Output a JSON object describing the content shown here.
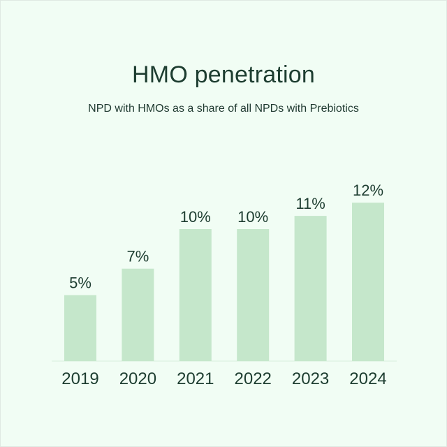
{
  "chart_data": {
    "type": "bar",
    "title": "HMO penetration",
    "subtitle": "NPD with HMOs as a share of all NPDs with Prebiotics",
    "categories": [
      "2019",
      "2020",
      "2021",
      "2022",
      "2023",
      "2024"
    ],
    "values": [
      5,
      7,
      10,
      10,
      11,
      12
    ],
    "value_labels": [
      "5%",
      "7%",
      "10%",
      "10%",
      "11%",
      "12%"
    ],
    "unit": "%",
    "xlabel": "",
    "ylabel": "",
    "grid": false,
    "legend": "none",
    "colors": {
      "background": "#f1fdf4",
      "bar": "#c5e7cb",
      "text": "#1d3d30"
    }
  }
}
